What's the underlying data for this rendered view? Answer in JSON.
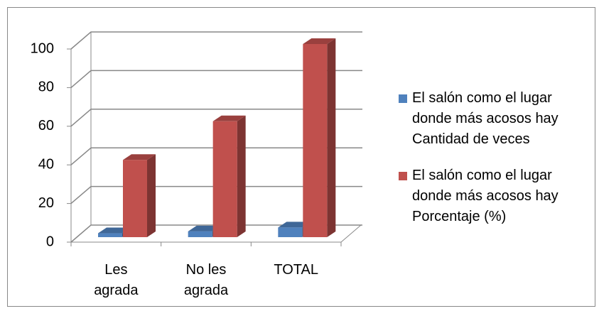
{
  "chart_data": {
    "type": "bar3d",
    "categories": [
      "Les agrada",
      "No les agrada",
      "TOTAL"
    ],
    "series": [
      {
        "name": "El salón como el lugar donde más acosos hay Cantidad de veces",
        "color": "#4f81bd",
        "values": [
          2,
          3,
          5
        ]
      },
      {
        "name": "El salón como el lugar donde más acosos hay Porcentaje (%)",
        "color": "#c0504d",
        "values": [
          40,
          60,
          100
        ]
      }
    ],
    "ylim": [
      0,
      100
    ],
    "yticks": [
      0,
      20,
      40,
      60,
      80,
      100
    ],
    "grid": true,
    "legend": "right"
  }
}
